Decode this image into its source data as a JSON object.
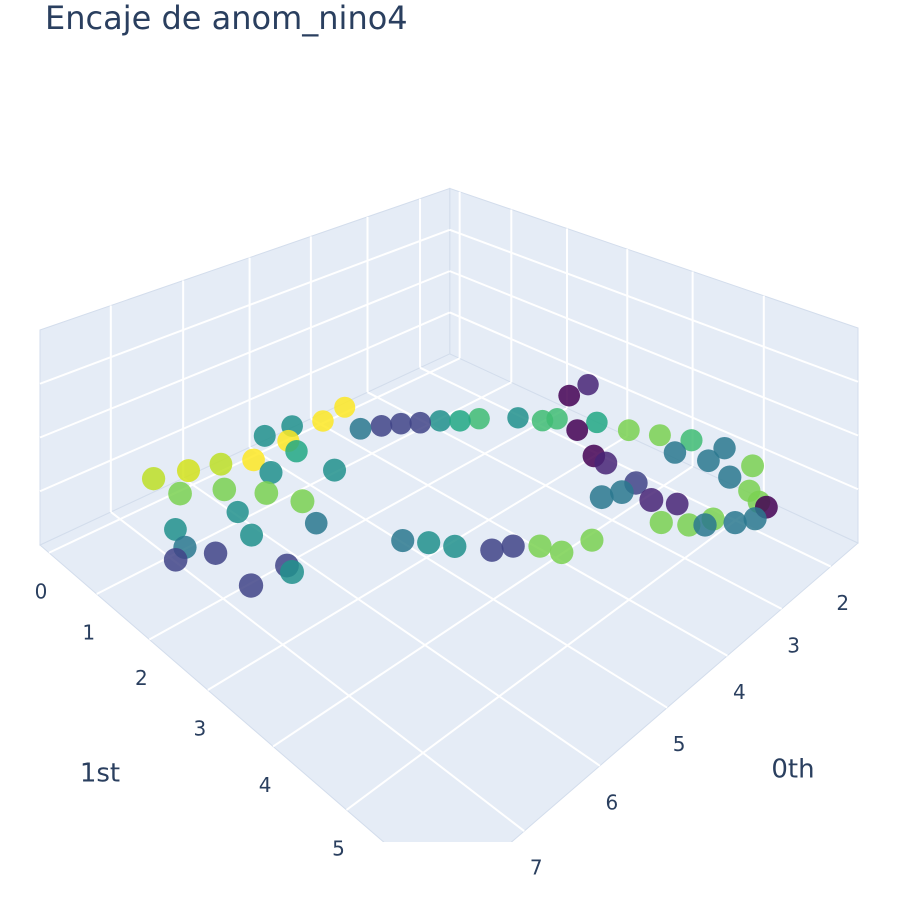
{
  "chart_data": {
    "type": "scatter3d",
    "title": "Encaje de anom_nino4",
    "x_label": "0th",
    "y_label": "1st",
    "xlim": [
      1.4,
      7.9
    ],
    "ylim": [
      -0.2,
      6.2
    ],
    "zlim": [
      -1,
      1
    ],
    "xticks": [
      2,
      3,
      4,
      5,
      6,
      7
    ],
    "yticks": [
      0,
      1,
      2,
      3,
      4,
      5
    ],
    "zticks": [
      -0.5,
      0,
      0.5
    ],
    "grid": true,
    "x": [
      5.24,
      4.84,
      4.48,
      4.13,
      3.8,
      3.5,
      3.24,
      7.46,
      7.11,
      6.79,
      6.49,
      5.98,
      5.43,
      5.05,
      7.42,
      7.05,
      6.78,
      6.61,
      7.12,
      7.23,
      6.45,
      6.6,
      6.51,
      6.05,
      6.0,
      5.97,
      6.69,
      7.42,
      7.06,
      7.12,
      6.66,
      5.52,
      5.35,
      5.2,
      4.97,
      4.76,
      4.56,
      4.48,
      4.09,
      3.55,
      3.2,
      3.53,
      3.82,
      3.84,
      3.92,
      4.06,
      4.38,
      4.16,
      3.12,
      2.96,
      2.8,
      2.68,
      2.77,
      3.02,
      3.13,
      2.47,
      2.58,
      2.61,
      3.24,
      3.35,
      3.09,
      2.88,
      3.64,
      3.47,
      3.2,
      3.14,
      6.1,
      5.75,
      5.03,
      4.67,
      4.32,
      3.65
    ],
    "y": [
      2.18,
      2.42,
      2.69,
      2.97,
      3.27,
      3.6,
      3.97,
      1.4,
      1.53,
      1.67,
      1.85,
      1.81,
      1.75,
      1.69,
      1.83,
      2.09,
      2.45,
      2.83,
      1.3,
      1.64,
      1.51,
      1.96,
      2.18,
      2.04,
      2.62,
      2.28,
      2.76,
      1.75,
      1.95,
      2.64,
      2.64,
      3.17,
      3.39,
      3.63,
      3.95,
      4.06,
      4.26,
      4.49,
      4.58,
      3.82,
      3.81,
      3.92,
      4.39,
      4.57,
      5.03,
      5.33,
      4.94,
      5.03,
      4.33,
      4.64,
      4.95,
      5.3,
      5.71,
      5.32,
      5.66,
      5.48,
      5.67,
      5.78,
      5.07,
      5.5,
      5.7,
      5.81,
      5.15,
      5.38,
      5.5,
      4.97,
      1.54,
      1.59,
      2.3,
      2.56,
      2.85,
      3.51
    ],
    "z": [
      0,
      0,
      0,
      0,
      0,
      0,
      0,
      0,
      0,
      0,
      0,
      0,
      0,
      0,
      0,
      0,
      0,
      0,
      -0.6,
      -0.6,
      -0.6,
      -0.6,
      0,
      0,
      0,
      -0.6,
      -0.6,
      -0.6,
      -0.6,
      -0.6,
      -0.6,
      -0.6,
      -0.6,
      -0.6,
      -0.6,
      -0.6,
      -0.6,
      -0.6,
      -0.6,
      0.3,
      0.3,
      0,
      0,
      0,
      0,
      0,
      0,
      0,
      0,
      0,
      0,
      0,
      0,
      0,
      0,
      -0.4,
      -0.4,
      -0.4,
      -0.4,
      -0.4,
      -0.4,
      -0.4,
      -0.4,
      -0.4,
      -0.4,
      0,
      0,
      0,
      0,
      0,
      0,
      0
    ],
    "colors": [
      "#2a788e",
      "#414487",
      "#21918c",
      "#3fbc73",
      "#21918c",
      "#3fbc73",
      "#22a884",
      "#bddf26",
      "#d2e21b",
      "#bddf26",
      "#fde725",
      "#fde725",
      "#fde725",
      "#fde725",
      "#7ad151",
      "#7ad151",
      "#7ad151",
      "#7ad151",
      "#21918c",
      "#2a788e",
      "#21918c",
      "#21918c",
      "#21918c",
      "#22a884",
      "#21918c",
      "#2a788e",
      "#21918c",
      "#414487",
      "#414487",
      "#414487",
      "#414487",
      "#2a788e",
      "#21918c",
      "#21918c",
      "#414487",
      "#414487",
      "#7ad151",
      "#7ad151",
      "#7ad151",
      "#440154",
      "#482575",
      "#440154",
      "#440154",
      "#482575",
      "#414487",
      "#482575",
      "#2a788e",
      "#2a788e",
      "#7ad151",
      "#7ad151",
      "#3fbc73",
      "#2a788e",
      "#7ad151",
      "#2a788e",
      "#2a788e",
      "#7ad151",
      "#7ad151",
      "#440154",
      "#482575",
      "#2a788e",
      "#2a788e",
      "#2a788e",
      "#7ad151",
      "#7ad151",
      "#7ad151",
      "#2a788e",
      "#21918c",
      "#21918c",
      "#414487",
      "#414487",
      "#22a884",
      "#3fbc73"
    ]
  }
}
